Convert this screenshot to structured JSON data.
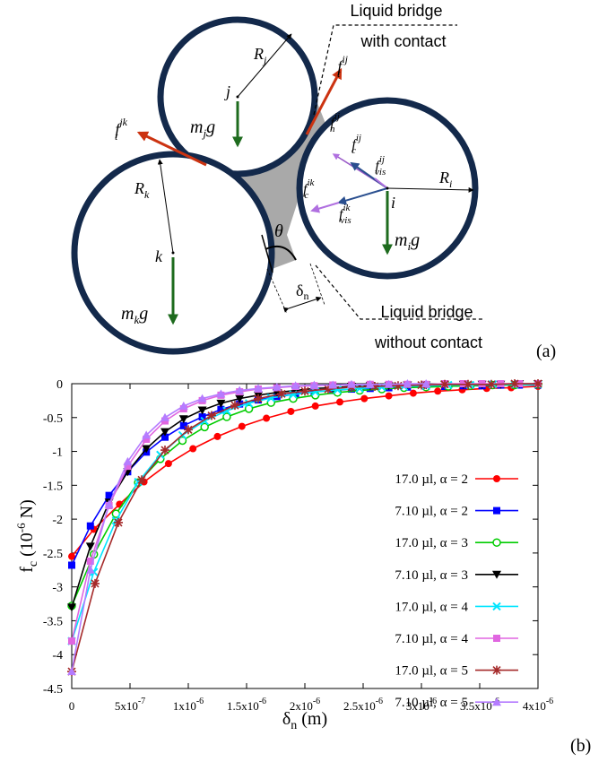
{
  "diagram": {
    "panel_label": "(a)",
    "annot_with_contact": [
      "Liquid bridge",
      "with contact"
    ],
    "annot_without_contact": [
      "Liquid bridge",
      "without contact"
    ],
    "particle_i": {
      "center_label": "i",
      "radius_label": "R",
      "radius_sub": "i",
      "weight_label": "m",
      "weight_sub": "i",
      "weight_tail": "g"
    },
    "particle_j": {
      "center_label": "j",
      "radius_label": "R",
      "radius_sub": "j",
      "weight_label": "m",
      "weight_sub": "j",
      "weight_tail": "g"
    },
    "particle_k": {
      "center_label": "k",
      "radius_label": "R",
      "radius_sub": "k",
      "weight_label": "m",
      "weight_sub": "k",
      "weight_tail": "g"
    },
    "angle_label": "θ",
    "gap_label": "δ",
    "gap_sub": "n",
    "force_labels": {
      "ft_ij": {
        "base": "f",
        "sub": "t",
        "sup": "ij"
      },
      "ft_jk": {
        "base": "f",
        "sub": "t",
        "sup": "jk"
      },
      "fn_ij": {
        "base": "f",
        "sub": "n",
        "sup": "ij"
      },
      "fc_ij": {
        "base": "f",
        "sub": "c",
        "sup": "ij"
      },
      "fvis_ij": {
        "base": "f",
        "sub": "vis",
        "sup": "ij"
      },
      "fc_ik": {
        "base": "f",
        "sub": "c",
        "sup": "ik"
      },
      "fvis_ik": {
        "base": "f",
        "sub": "vis",
        "sup": "ik"
      }
    }
  },
  "chart_data": {
    "type": "line",
    "panel_label": "(b)",
    "xlabel": "δn (m)",
    "xlabel_main": "δ",
    "xlabel_sub": "n",
    "xlabel_unit": " (m)",
    "ylabel": "fc (10-6 N)",
    "ylabel_main": "f",
    "ylabel_sub": "c",
    "ylabel_unit_pre": " (10",
    "ylabel_unit_exp": "-6",
    "ylabel_unit_post": " N)",
    "xlim": [
      0,
      4e-06
    ],
    "ylim": [
      -4.5,
      0
    ],
    "xticks": [
      {
        "value": 0,
        "label": "0",
        "exp": ""
      },
      {
        "value": 5e-07,
        "label": "5x10",
        "exp": "-7"
      },
      {
        "value": 1e-06,
        "label": "1x10",
        "exp": "-6"
      },
      {
        "value": 1.5e-06,
        "label": "1.5x10",
        "exp": "-6"
      },
      {
        "value": 2e-06,
        "label": "2x10",
        "exp": "-6"
      },
      {
        "value": 2.5e-06,
        "label": "2.5x10",
        "exp": "-6"
      },
      {
        "value": 3e-06,
        "label": "3x10",
        "exp": "-6"
      },
      {
        "value": 3.5e-06,
        "label": "3.5x10",
        "exp": "-6"
      },
      {
        "value": 4e-06,
        "label": "4x10",
        "exp": "-6"
      }
    ],
    "yticks": [
      {
        "value": 0,
        "label": "0"
      },
      {
        "value": -0.5,
        "label": "-0.5"
      },
      {
        "value": -1,
        "label": "-1"
      },
      {
        "value": -1.5,
        "label": "-1.5"
      },
      {
        "value": -2,
        "label": "-2"
      },
      {
        "value": -2.5,
        "label": "-2.5"
      },
      {
        "value": -3,
        "label": "-3"
      },
      {
        "value": -3.5,
        "label": "-3.5"
      },
      {
        "value": -4,
        "label": "-4"
      },
      {
        "value": -4.5,
        "label": "-4.5"
      }
    ],
    "grid": false,
    "legend_position": "center-right",
    "series": [
      {
        "name": "17.0 µl, α = 2",
        "color": "#ff0000",
        "marker": "circle-filled",
        "x": [
          0,
          1.9e-07,
          4.1e-07,
          6.2e-07,
          8.3e-07,
          1.04e-06,
          1.25e-06,
          1.46e-06,
          1.67e-06,
          1.88e-06,
          2.09e-06,
          2.3e-06,
          2.51e-06,
          2.72e-06,
          2.93e-06,
          3.14e-06,
          3.35e-06,
          3.56e-06,
          3.77e-06,
          4e-06
        ],
        "y": [
          -2.55,
          -2.15,
          -1.78,
          -1.45,
          -1.18,
          -0.96,
          -0.78,
          -0.63,
          -0.51,
          -0.41,
          -0.33,
          -0.27,
          -0.22,
          -0.18,
          -0.14,
          -0.11,
          -0.09,
          -0.07,
          -0.06,
          -0.04
        ]
      },
      {
        "name": "7.10 µl, α = 2",
        "color": "#0000ff",
        "marker": "square-filled",
        "x": [
          0,
          1.6e-07,
          3.2e-07,
          4.8e-07,
          6.4e-07,
          8e-07,
          9.6e-07,
          1.12e-06,
          1.28e-06,
          1.44e-06,
          1.6e-06,
          1.76e-06,
          1.92e-06,
          2.08e-06,
          2.24e-06,
          2.4e-06,
          2.56e-06,
          2.72e-06,
          2.88e-06,
          3.04e-06,
          3.2e-06,
          3.36e-06,
          3.52e-06,
          3.68e-06,
          3.84e-06,
          4e-06
        ],
        "y": [
          -2.68,
          -2.1,
          -1.65,
          -1.3,
          -1.01,
          -0.79,
          -0.62,
          -0.49,
          -0.38,
          -0.3,
          -0.24,
          -0.19,
          -0.15,
          -0.12,
          -0.1,
          -0.08,
          -0.07,
          -0.06,
          -0.05,
          -0.04,
          -0.04,
          -0.03,
          -0.03,
          -0.02,
          -0.02,
          -0.02
        ]
      },
      {
        "name": "17.0 µl, α = 3",
        "color": "#00cc00",
        "marker": "circle-open",
        "x": [
          0,
          1.9e-07,
          3.8e-07,
          5.7e-07,
          7.6e-07,
          9.5e-07,
          1.14e-06,
          1.33e-06,
          1.52e-06,
          1.71e-06,
          1.9e-06,
          2.09e-06,
          2.28e-06,
          2.47e-06,
          2.66e-06,
          2.85e-06,
          3.04e-06,
          3.23e-06,
          3.42e-06,
          3.61e-06,
          3.8e-06,
          4e-06
        ],
        "y": [
          -3.28,
          -2.52,
          -1.92,
          -1.46,
          -1.11,
          -0.84,
          -0.64,
          -0.49,
          -0.37,
          -0.28,
          -0.22,
          -0.17,
          -0.13,
          -0.1,
          -0.08,
          -0.06,
          -0.05,
          -0.04,
          -0.03,
          -0.02,
          -0.02,
          -0.01
        ]
      },
      {
        "name": "7.10 µl, α = 3",
        "color": "#000000",
        "marker": "triangle-down-filled",
        "x": [
          0,
          1.6e-07,
          3.2e-07,
          4.8e-07,
          6.4e-07,
          8e-07,
          9.6e-07,
          1.12e-06,
          1.28e-06,
          1.44e-06,
          1.6e-06,
          1.76e-06,
          1.92e-06,
          2.08e-06,
          2.24e-06,
          2.4e-06,
          2.56e-06,
          2.72e-06,
          2.88e-06,
          3.04e-06,
          3.2e-06,
          3.36e-06,
          3.52e-06,
          3.68e-06,
          3.84e-06,
          4e-06
        ],
        "y": [
          -3.3,
          -2.4,
          -1.75,
          -1.3,
          -0.96,
          -0.71,
          -0.52,
          -0.39,
          -0.29,
          -0.22,
          -0.17,
          -0.13,
          -0.1,
          -0.07,
          -0.06,
          -0.04,
          -0.03,
          -0.03,
          -0.02,
          -0.02,
          -0.01,
          -0.01,
          -0.01,
          -0.01,
          0,
          0
        ]
      },
      {
        "name": "17.0 µl, α = 4",
        "color": "#00e5ff",
        "marker": "x",
        "x": [
          0,
          1.9e-07,
          3.8e-07,
          5.7e-07,
          7.6e-07,
          9.5e-07,
          1.14e-06,
          1.33e-06,
          1.52e-06,
          1.71e-06,
          1.9e-06,
          2.09e-06,
          2.28e-06,
          2.47e-06,
          2.66e-06,
          2.85e-06,
          3.04e-06,
          3.23e-06,
          3.42e-06,
          3.61e-06,
          3.8e-06,
          4e-06
        ],
        "y": [
          -3.8,
          -2.78,
          -2.02,
          -1.45,
          -1.05,
          -0.76,
          -0.55,
          -0.4,
          -0.29,
          -0.21,
          -0.16,
          -0.12,
          -0.09,
          -0.07,
          -0.05,
          -0.04,
          -0.03,
          -0.02,
          -0.02,
          -0.01,
          -0.01,
          -0.01
        ]
      },
      {
        "name": "7.10 µl, α = 4",
        "color": "#e066e0",
        "marker": "square-filled",
        "x": [
          0,
          1.6e-07,
          3.2e-07,
          4.8e-07,
          6.4e-07,
          8e-07,
          9.6e-07,
          1.12e-06,
          1.28e-06,
          1.44e-06,
          1.6e-06,
          1.76e-06,
          1.92e-06,
          2.08e-06,
          2.24e-06,
          2.4e-06,
          2.56e-06,
          2.72e-06,
          2.88e-06,
          3.04e-06,
          3.2e-06,
          3.36e-06,
          3.52e-06,
          3.68e-06,
          3.84e-06,
          4e-06
        ],
        "y": [
          -3.8,
          -2.62,
          -1.8,
          -1.22,
          -0.82,
          -0.55,
          -0.37,
          -0.25,
          -0.17,
          -0.12,
          -0.08,
          -0.06,
          -0.04,
          -0.03,
          -0.02,
          -0.02,
          -0.01,
          -0.01,
          -0.01,
          -0.01,
          0,
          0,
          0,
          0,
          0,
          0
        ]
      },
      {
        "name": "17.0 µl, α = 5",
        "color": "#a52a2a",
        "marker": "star",
        "x": [
          0,
          2e-07,
          4e-07,
          6e-07,
          8e-07,
          1e-06,
          1.2e-06,
          1.4e-06,
          1.6e-06,
          1.8e-06,
          2e-06,
          2.2e-06,
          2.4e-06,
          2.6e-06,
          2.8e-06,
          3e-06,
          3.2e-06,
          3.4e-06,
          3.6e-06,
          3.8e-06,
          4e-06
        ],
        "y": [
          -4.25,
          -2.95,
          -2.05,
          -1.42,
          -0.98,
          -0.68,
          -0.47,
          -0.32,
          -0.22,
          -0.15,
          -0.11,
          -0.08,
          -0.05,
          -0.04,
          -0.03,
          -0.02,
          -0.01,
          -0.01,
          -0.01,
          0,
          0
        ]
      },
      {
        "name": "7.10 µl, α = 5",
        "color": "#b57cff",
        "marker": "triangle-up-filled",
        "x": [
          0,
          1.6e-07,
          3.2e-07,
          4.8e-07,
          6.4e-07,
          8e-07,
          9.6e-07,
          1.12e-06,
          1.28e-06,
          1.44e-06,
          1.6e-06,
          1.76e-06,
          1.92e-06,
          2.08e-06,
          2.24e-06,
          2.4e-06,
          2.56e-06,
          2.72e-06,
          2.88e-06,
          3.04e-06
        ],
        "y": [
          -4.25,
          -2.75,
          -1.78,
          -1.15,
          -0.76,
          -0.5,
          -0.33,
          -0.22,
          -0.15,
          -0.1,
          -0.07,
          -0.05,
          -0.03,
          -0.02,
          -0.02,
          -0.01,
          -0.01,
          -0.01,
          0,
          0
        ]
      }
    ]
  }
}
